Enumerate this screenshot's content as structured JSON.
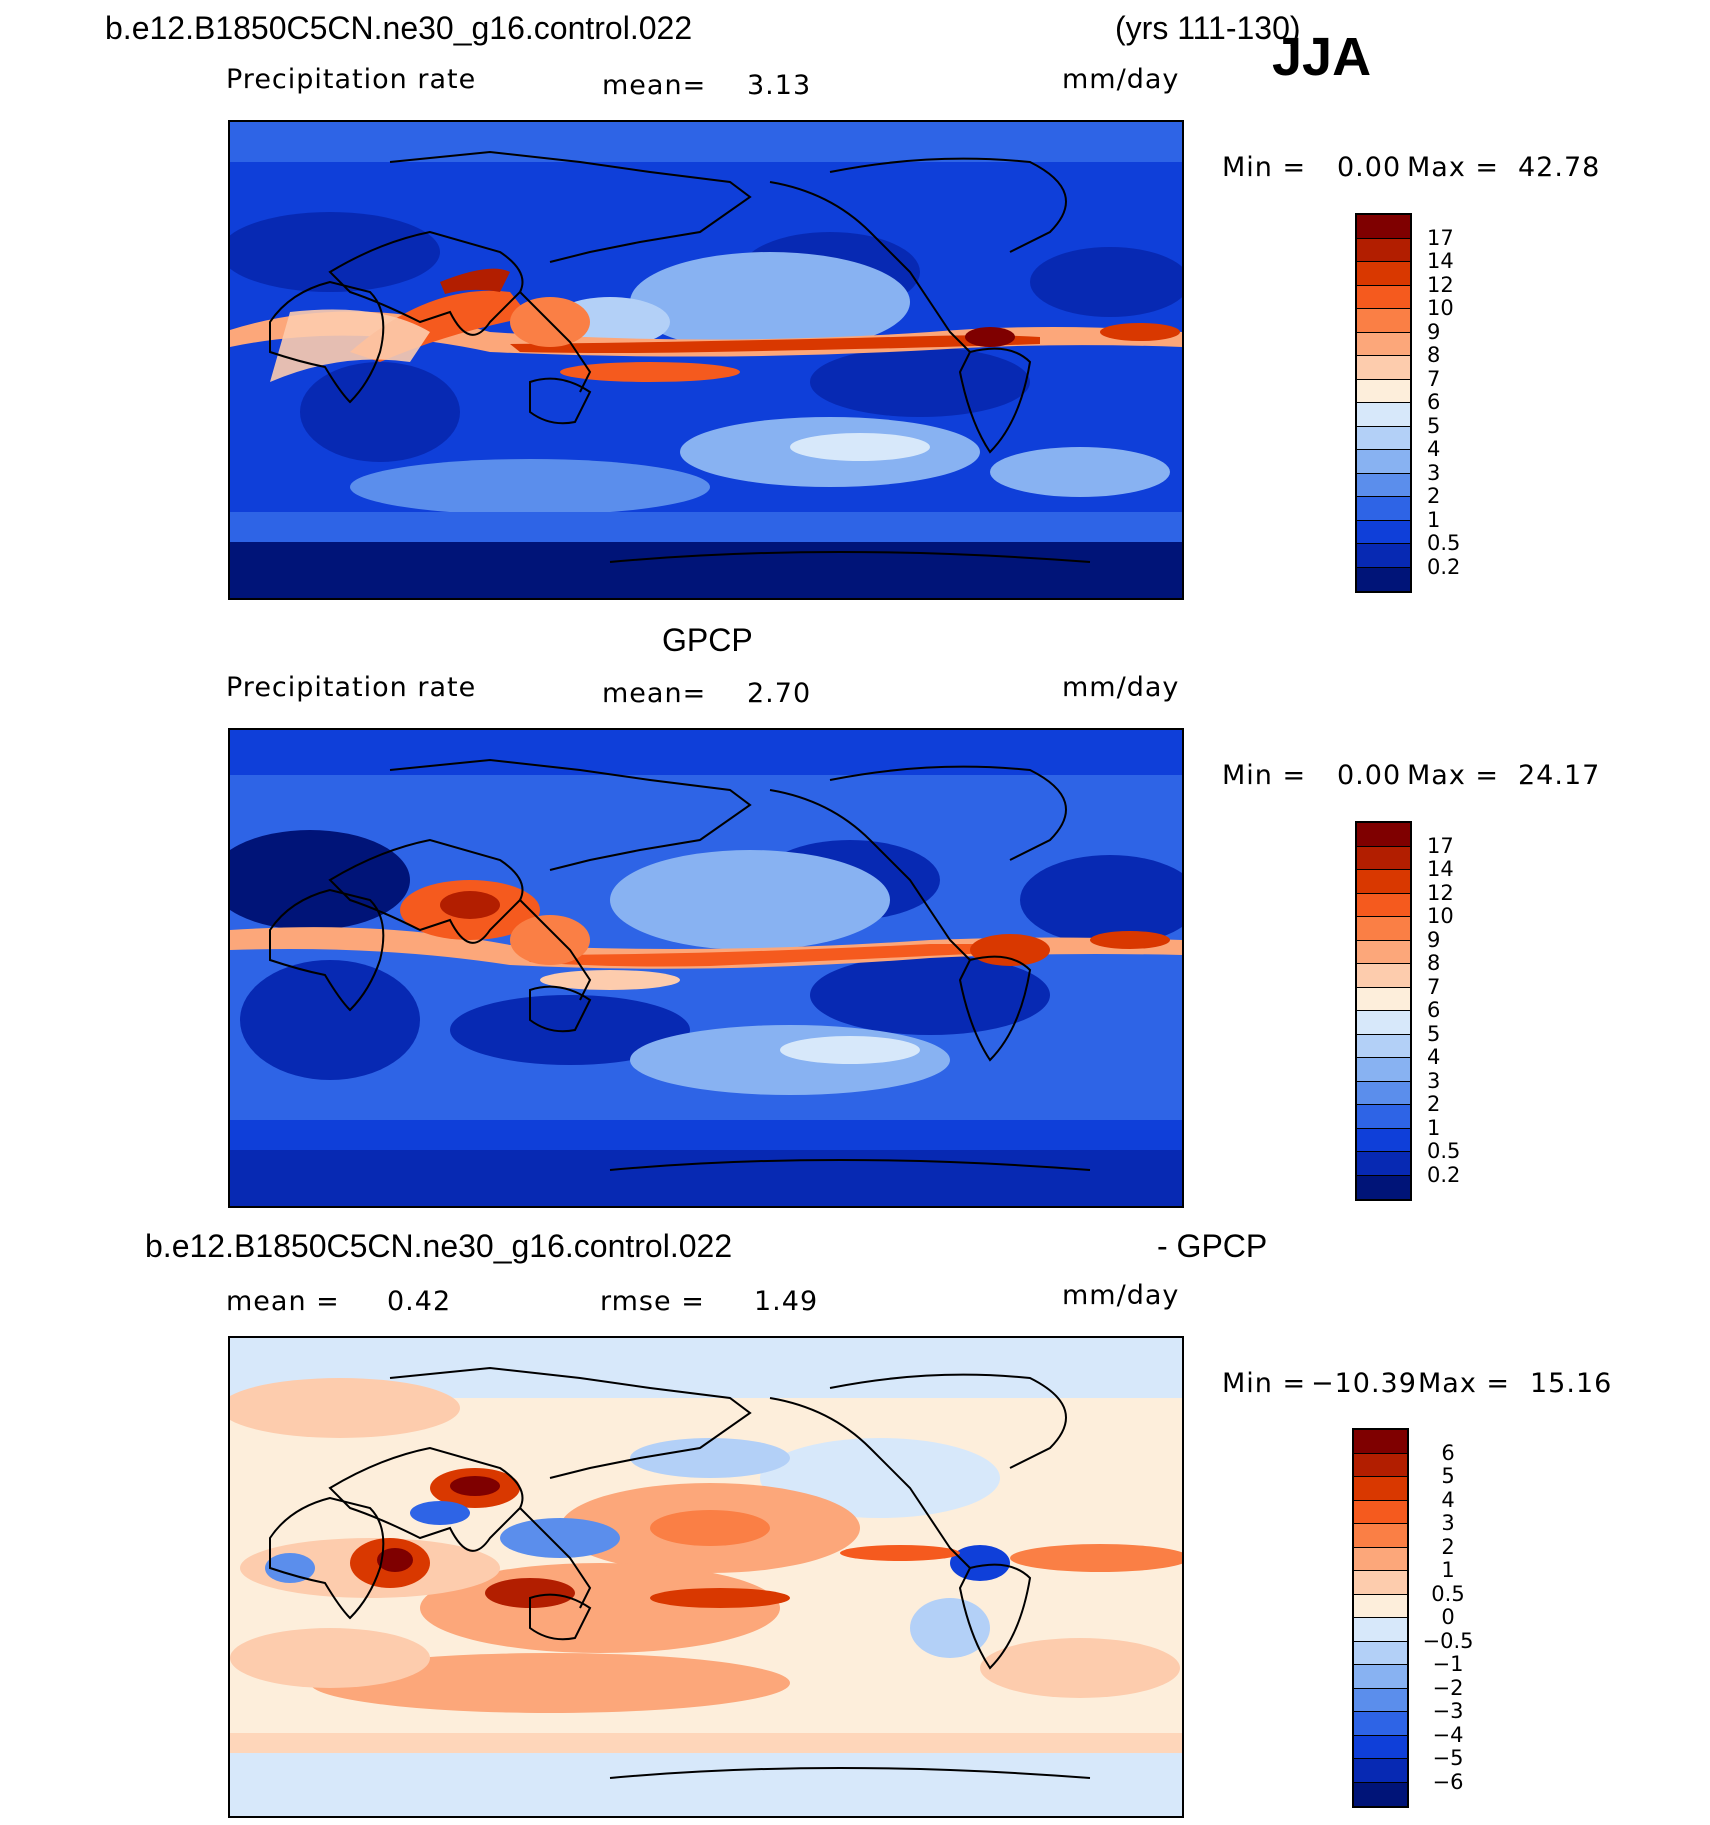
{
  "header": {
    "case_name": "b.e12.B1850C5CN.ne30_g16.control.022",
    "years": "(yrs 111-130)",
    "season": "JJA"
  },
  "panel1": {
    "variable": "Precipitation rate",
    "mean_label": "mean=",
    "mean_value": "3.13",
    "units": "mm/day",
    "min_label": "Min =",
    "min_value": "0.00",
    "max_label": "Max =",
    "max_value": "42.78",
    "levels": [
      "17",
      "14",
      "12",
      "10",
      "9",
      "8",
      "7",
      "6",
      "5",
      "4",
      "3",
      "2",
      "1",
      "0.5",
      "0.2"
    ],
    "colors": [
      "#7f0000",
      "#b21e00",
      "#d93800",
      "#f55a1e",
      "#fa7f45",
      "#fca77a",
      "#fdccad",
      "#fdeedb",
      "#d7e8fa",
      "#b3d0f7",
      "#88b2f2",
      "#5b8eec",
      "#2e64e6",
      "#0f3fd9",
      "#0729b3",
      "#001478"
    ]
  },
  "title2": "GPCP",
  "panel2": {
    "variable": "Precipitation rate",
    "mean_label": "mean=",
    "mean_value": "2.70",
    "units": "mm/day",
    "min_label": "Min =",
    "min_value": "0.00",
    "max_label": "Max =",
    "max_value": "24.17",
    "levels": [
      "17",
      "14",
      "12",
      "10",
      "9",
      "8",
      "7",
      "6",
      "5",
      "4",
      "3",
      "2",
      "1",
      "0.5",
      "0.2"
    ],
    "colors": [
      "#7f0000",
      "#b21e00",
      "#d93800",
      "#f55a1e",
      "#fa7f45",
      "#fca77a",
      "#fdccad",
      "#fdeedb",
      "#d7e8fa",
      "#b3d0f7",
      "#88b2f2",
      "#5b8eec",
      "#2e64e6",
      "#0f3fd9",
      "#0729b3",
      "#001478"
    ]
  },
  "title3": {
    "left": "b.e12.B1850C5CN.ne30_g16.control.022",
    "right": "- GPCP"
  },
  "panel3": {
    "mean_label": "mean =",
    "mean_value": "0.42",
    "rmse_label": "rmse =",
    "rmse_value": "1.49",
    "units": "mm/day",
    "min_label": "Min =",
    "min_value": "−10.39",
    "max_label": "Max =",
    "max_value": "15.16",
    "levels": [
      "6",
      "5",
      "4",
      "3",
      "2",
      "1",
      "0.5",
      "0",
      "−0.5",
      "−1",
      "−2",
      "−3",
      "−4",
      "−5",
      "−6"
    ],
    "colors": [
      "#7f0000",
      "#b21e00",
      "#d93800",
      "#f55a1e",
      "#fa7f45",
      "#fca77a",
      "#fdccad",
      "#fdeedb",
      "#d7e8fa",
      "#b3d0f7",
      "#88b2f2",
      "#5b8eec",
      "#2e64e6",
      "#0f3fd9",
      "#0729b3",
      "#001478"
    ]
  }
}
